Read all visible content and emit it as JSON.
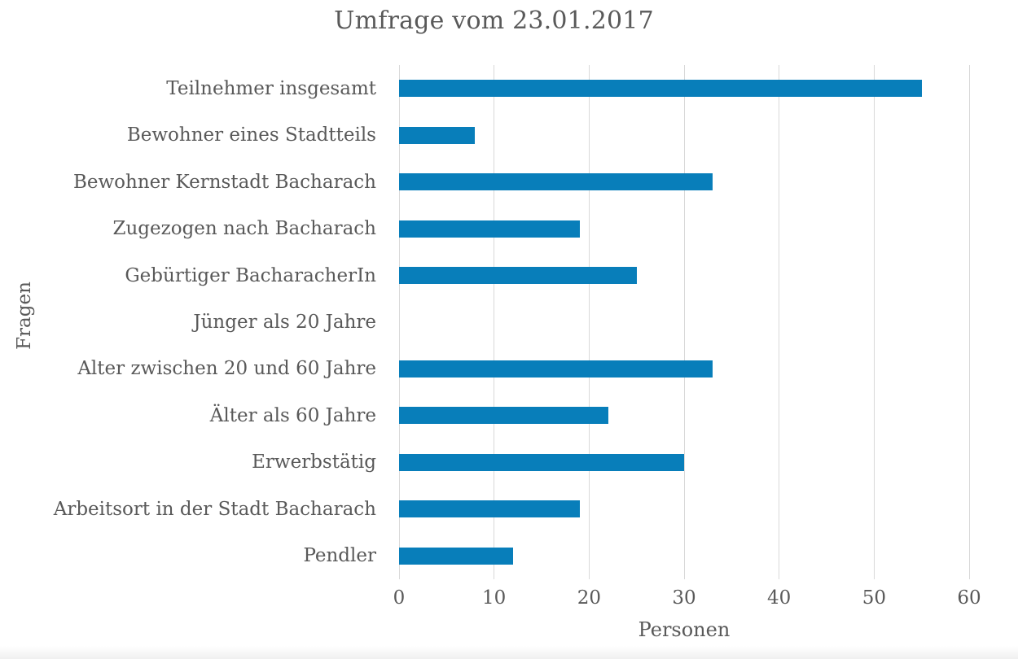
{
  "chart_data": {
    "type": "bar",
    "orientation": "horizontal",
    "title": "Umfrage vom 23.01.2017",
    "xlabel": "Personen",
    "ylabel": "Fragen",
    "categories": [
      "Teilnehmer insgesamt",
      "Bewohner eines Stadtteils",
      "Bewohner Kernstadt Bacharach",
      "Zugezogen nach Bacharach",
      "Gebürtiger BacharacherIn",
      "Jünger als 20 Jahre",
      "Alter zwischen 20 und 60 Jahre",
      "Älter als 60 Jahre",
      "Erwerbstätig",
      "Arbeitsort in der Stadt Bacharach",
      "Pendler"
    ],
    "values": [
      55,
      8,
      33,
      19,
      25,
      0,
      33,
      22,
      30,
      19,
      12
    ],
    "xlim": [
      0,
      60
    ],
    "xticks": [
      0,
      10,
      20,
      30,
      40,
      50,
      60
    ],
    "grid": "vertical-gridlines-on",
    "legend": "none",
    "bar_color": "#087eba",
    "text_color": "#595959",
    "gridline_color": "#d9d9d9"
  }
}
